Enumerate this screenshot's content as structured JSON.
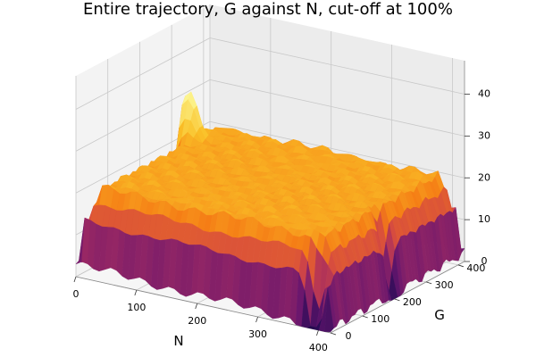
{
  "chart_data": {
    "type": "surface",
    "title": "Entire trajectory, G against N, cut-off at 100%",
    "xlabel": "N",
    "ylabel": "G",
    "zlabel": "",
    "x_ticks": [
      "0",
      "100",
      "200",
      "300",
      "400"
    ],
    "y_ticks": [
      "0",
      "100",
      "200",
      "300",
      "400"
    ],
    "z_ticks": [
      "0",
      "10",
      "20",
      "30",
      "40"
    ],
    "xlim": [
      0,
      420
    ],
    "ylim": [
      0,
      420
    ],
    "zlim": [
      0,
      48
    ],
    "colormap": "inferno",
    "grid": true,
    "surface_profile": {
      "plateau_level": 21,
      "corners": [
        {
          "N": 0,
          "G": 0,
          "level": 3
        },
        {
          "N": 420,
          "G": 0,
          "level": 1
        },
        {
          "N": 0,
          "G": 420,
          "level": 4
        },
        {
          "N": 420,
          "G": 420,
          "level": 2
        }
      ],
      "peaks": [
        {
          "N": 10,
          "G": 320,
          "level": 38
        }
      ],
      "dips": [
        {
          "N": 390,
          "G": 10,
          "level": 0
        },
        {
          "N": 410,
          "G": 200,
          "level": 8
        },
        {
          "N": 0,
          "G": 250,
          "level": 10
        },
        {
          "N": 230,
          "G": 420,
          "level": 12
        }
      ]
    }
  }
}
